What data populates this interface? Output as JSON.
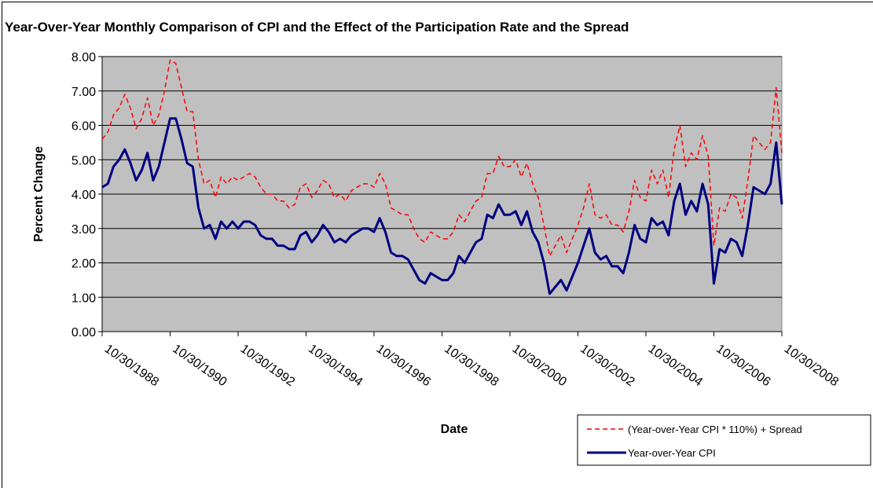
{
  "chart_data": {
    "type": "line",
    "title": "Year-Over-Year Monthly Comparison of CPI and the Effect of the Participation Rate and the Spread",
    "x_label": "Date",
    "y_label": "Percent Change",
    "categories": [
      "10/30/1988",
      null,
      null,
      null,
      null,
      null,
      null,
      null,
      null,
      null,
      null,
      null,
      "10/30/1990",
      null,
      null,
      null,
      null,
      null,
      null,
      null,
      null,
      null,
      null,
      null,
      "10/30/1992",
      null,
      null,
      null,
      null,
      null,
      null,
      null,
      null,
      null,
      null,
      null,
      "10/30/1994",
      null,
      null,
      null,
      null,
      null,
      null,
      null,
      null,
      null,
      null,
      null,
      "10/30/1996",
      null,
      null,
      null,
      null,
      null,
      null,
      null,
      null,
      null,
      null,
      null,
      "10/30/1998",
      null,
      null,
      null,
      null,
      null,
      null,
      null,
      null,
      null,
      null,
      null,
      "10/30/2000",
      null,
      null,
      null,
      null,
      null,
      null,
      null,
      null,
      null,
      null,
      null,
      "10/30/2002",
      null,
      null,
      null,
      null,
      null,
      null,
      null,
      null,
      null,
      null,
      null,
      "10/30/2004",
      null,
      null,
      null,
      null,
      null,
      null,
      null,
      null,
      null,
      null,
      null,
      "10/30/2006",
      null,
      null,
      null,
      null,
      null,
      null,
      null,
      null,
      null,
      null,
      null,
      "10/30/2008"
    ],
    "series": [
      {
        "name": "(Year-over-Year CPI * 110%) + Spread",
        "color": "#ff0000",
        "line_style": "dashed",
        "values": [
          5.6,
          5.8,
          6.3,
          6.5,
          6.9,
          6.5,
          5.9,
          6.2,
          6.8,
          6.0,
          6.3,
          7.0,
          7.9,
          7.8,
          7.1,
          6.4,
          6.4,
          5.0,
          4.3,
          4.4,
          3.9,
          4.5,
          4.3,
          4.5,
          4.4,
          4.5,
          4.6,
          4.5,
          4.2,
          4.0,
          4.0,
          3.8,
          3.8,
          3.6,
          3.7,
          4.2,
          4.3,
          3.9,
          4.1,
          4.4,
          4.3,
          3.9,
          4.0,
          3.8,
          4.1,
          4.2,
          4.3,
          4.3,
          4.2,
          4.6,
          4.3,
          3.6,
          3.5,
          3.4,
          3.4,
          3.0,
          2.7,
          2.6,
          2.9,
          2.8,
          2.7,
          2.7,
          2.9,
          3.4,
          3.2,
          3.5,
          3.8,
          3.9,
          4.6,
          4.6,
          5.1,
          4.8,
          4.8,
          5.0,
          4.5,
          4.9,
          4.3,
          3.9,
          3.1,
          2.2,
          2.5,
          2.8,
          2.3,
          2.7,
          3.1,
          3.6,
          4.3,
          3.4,
          3.3,
          3.4,
          3.1,
          3.1,
          2.9,
          3.5,
          4.4,
          3.9,
          3.8,
          4.7,
          4.3,
          4.7,
          3.9,
          5.3,
          6.0,
          4.8,
          5.2,
          5.0,
          5.7,
          5.1,
          2.5,
          3.6,
          3.5,
          4.0,
          3.9,
          3.3,
          4.4,
          5.7,
          5.5,
          5.3,
          5.5,
          7.1,
          5.2
        ]
      },
      {
        "name": "Year-over-Year CPI",
        "color": "#000080",
        "line_style": "solid",
        "values": [
          4.2,
          4.3,
          4.8,
          5.0,
          5.3,
          4.9,
          4.4,
          4.7,
          5.2,
          4.4,
          4.8,
          5.5,
          6.2,
          6.2,
          5.6,
          4.9,
          4.8,
          3.6,
          3.0,
          3.1,
          2.7,
          3.2,
          3.0,
          3.2,
          3.0,
          3.2,
          3.2,
          3.1,
          2.8,
          2.7,
          2.7,
          2.5,
          2.5,
          2.4,
          2.4,
          2.8,
          2.9,
          2.6,
          2.8,
          3.1,
          2.9,
          2.6,
          2.7,
          2.6,
          2.8,
          2.9,
          3.0,
          3.0,
          2.9,
          3.3,
          2.9,
          2.3,
          2.2,
          2.2,
          2.1,
          1.8,
          1.5,
          1.4,
          1.7,
          1.6,
          1.5,
          1.5,
          1.7,
          2.2,
          2.0,
          2.3,
          2.6,
          2.7,
          3.4,
          3.3,
          3.7,
          3.4,
          3.4,
          3.5,
          3.1,
          3.5,
          2.9,
          2.6,
          2.0,
          1.1,
          1.3,
          1.5,
          1.2,
          1.6,
          2.0,
          2.5,
          3.0,
          2.3,
          2.1,
          2.2,
          1.9,
          1.9,
          1.7,
          2.3,
          3.1,
          2.7,
          2.6,
          3.3,
          3.1,
          3.2,
          2.8,
          3.8,
          4.3,
          3.4,
          3.8,
          3.5,
          4.3,
          3.7,
          1.4,
          2.4,
          2.3,
          2.7,
          2.6,
          2.2,
          3.1,
          4.2,
          4.1,
          4.0,
          4.3,
          5.5,
          3.7
        ]
      }
    ],
    "ylim": [
      0,
      8
    ],
    "yticks": [
      {
        "value": 0,
        "label": "0.00"
      },
      {
        "value": 1,
        "label": "1.00"
      },
      {
        "value": 2,
        "label": "2.00"
      },
      {
        "value": 3,
        "label": "3.00"
      },
      {
        "value": 4,
        "label": "4.00"
      },
      {
        "value": 5,
        "label": "5.00"
      },
      {
        "value": 6,
        "label": "6.00"
      },
      {
        "value": 7,
        "label": "7.00"
      },
      {
        "value": 8,
        "label": "8.00"
      }
    ],
    "grid": true,
    "plot_background": "#c0c0c0",
    "legend_position": "lower right"
  }
}
